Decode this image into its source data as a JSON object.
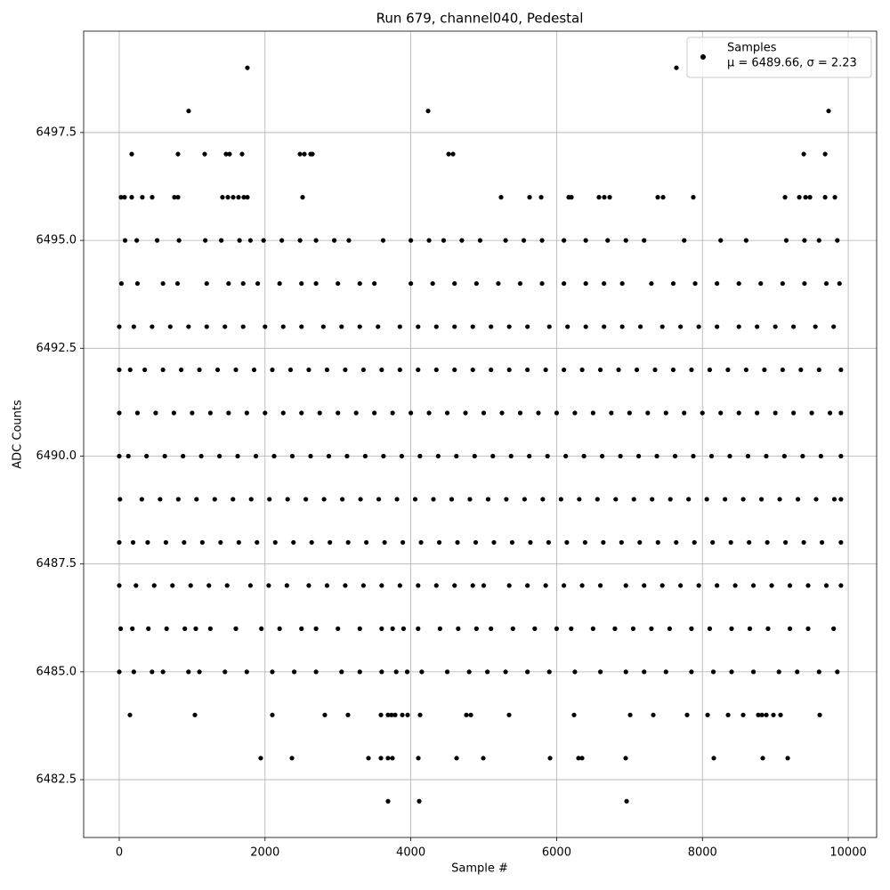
{
  "chart_data": {
    "type": "scatter",
    "title": "Run 679, channel040, Pedestal",
    "x_label": "Sample #",
    "y_label": "ADC Counts",
    "legend_stats": "μ = 6489.66, σ = 2.23",
    "legend_loc": "upper right",
    "grid": true,
    "xlim": [
      -488,
      10390
    ],
    "ylim": [
      6481.16,
      6499.85
    ],
    "xticks": [
      0,
      2000,
      4000,
      6000,
      8000,
      10000
    ],
    "yticks": [
      6482.5,
      {
        "value": 6485,
        "label": "6485.0"
      },
      6487.5,
      {
        "value": 6490,
        "label": "6490.0"
      },
      6492.5,
      {
        "value": 6495,
        "label": "6495.0"
      },
      6497.5
    ],
    "series": [
      {
        "name": "Samples",
        "color": "#000000",
        "x": [
          1758,
          7643,
          952,
          4237,
          9731,
          171,
          806,
          1172,
          1465,
          1514,
          1685,
          2479,
          2540,
          2625,
          2650,
          4518,
          4579,
          9390,
          9683,
          24,
          73,
          171,
          317,
          452,
          757,
          806,
          1416,
          1490,
          1563,
          1636,
          1709,
          1758,
          2515,
          5238,
          5629,
          5788,
          6166,
          6203,
          6581,
          6654,
          6728,
          7387,
          7460,
          7875,
          9133,
          9329,
          9414,
          9475,
          9683,
          9817,
          80,
          240,
          520,
          820,
          1180,
          1400,
          1650,
          1800,
          1980,
          2230,
          2480,
          2700,
          2950,
          3150,
          3620,
          4000,
          4250,
          4450,
          4700,
          4950,
          5300,
          5550,
          5800,
          6100,
          6400,
          6700,
          6950,
          7200,
          7750,
          8250,
          8600,
          9150,
          9400,
          9600,
          9850,
          30,
          250,
          600,
          800,
          1200,
          1500,
          1700,
          1900,
          2200,
          2500,
          2700,
          3000,
          3300,
          3500,
          4000,
          4300,
          4600,
          4900,
          5200,
          5500,
          5800,
          6100,
          6400,
          6650,
          6900,
          7300,
          7600,
          7900,
          8200,
          8500,
          8800,
          9100,
          9400,
          9700,
          9880,
          0,
          200,
          450,
          700,
          950,
          1200,
          1450,
          1700,
          2000,
          2250,
          2500,
          2800,
          3050,
          3300,
          3550,
          3850,
          4100,
          4350,
          4600,
          4850,
          5100,
          5350,
          5600,
          5900,
          6150,
          6400,
          6650,
          6900,
          7150,
          7450,
          7700,
          7950,
          8200,
          8500,
          8750,
          9000,
          9250,
          9550,
          9800,
          0,
          150,
          350,
          600,
          850,
          1100,
          1350,
          1600,
          1850,
          2100,
          2350,
          2600,
          2850,
          3100,
          3350,
          3600,
          3850,
          4100,
          4350,
          4600,
          4850,
          5100,
          5350,
          5600,
          5850,
          6100,
          6350,
          6600,
          6850,
          7100,
          7350,
          7600,
          7850,
          8100,
          8350,
          8600,
          8850,
          9100,
          9350,
          9600,
          9900,
          0,
          250,
          500,
          750,
          1000,
          1250,
          1500,
          1750,
          2000,
          2250,
          2500,
          2750,
          3000,
          3250,
          3500,
          3750,
          4000,
          4250,
          4500,
          4750,
          5000,
          5250,
          5500,
          5750,
          6000,
          6250,
          6500,
          6750,
          7000,
          7250,
          7500,
          7750,
          8000,
          8250,
          8500,
          8750,
          9000,
          9250,
          9500,
          9750,
          9900,
          0,
          125,
          375,
          625,
          875,
          1125,
          1375,
          1625,
          1875,
          2125,
          2375,
          2625,
          2875,
          3125,
          3375,
          3625,
          3875,
          4125,
          4375,
          4625,
          4875,
          5125,
          5375,
          5625,
          5875,
          6125,
          6375,
          6625,
          6875,
          7125,
          7375,
          7625,
          7875,
          8125,
          8375,
          8625,
          8875,
          9125,
          9375,
          9625,
          9900,
          10,
          310,
          560,
          810,
          1060,
          1310,
          1560,
          1810,
          2060,
          2310,
          2560,
          2810,
          3060,
          3310,
          3560,
          3810,
          4060,
          4310,
          4560,
          4810,
          5060,
          5310,
          5560,
          5810,
          6060,
          6310,
          6560,
          6810,
          7060,
          7310,
          7560,
          7810,
          8060,
          8310,
          8560,
          8810,
          9060,
          9310,
          9560,
          9810,
          9900,
          0,
          190,
          390,
          640,
          890,
          1140,
          1390,
          1640,
          1890,
          2140,
          2390,
          2640,
          2890,
          3140,
          3390,
          3640,
          3890,
          4140,
          4390,
          4640,
          4890,
          5140,
          5390,
          5640,
          5890,
          6140,
          6390,
          6640,
          6890,
          7140,
          7390,
          7640,
          7890,
          8140,
          8390,
          8640,
          8890,
          9140,
          9390,
          9640,
          9900,
          0,
          230,
          480,
          730,
          980,
          1230,
          1480,
          1800,
          2050,
          2300,
          2600,
          2850,
          3100,
          3350,
          3600,
          3850,
          4100,
          4350,
          4600,
          4850,
          5000,
          5350,
          5600,
          5850,
          6100,
          6350,
          6600,
          6950,
          7200,
          7450,
          7700,
          7950,
          8200,
          8450,
          8700,
          8950,
          9200,
          9450,
          9700,
          9900,
          20,
          180,
          400,
          650,
          900,
          1050,
          1250,
          1600,
          1950,
          2200,
          2500,
          2700,
          3000,
          3300,
          3600,
          3750,
          3900,
          4100,
          4400,
          4650,
          4900,
          5100,
          5400,
          5700,
          6000,
          6200,
          6500,
          6800,
          7050,
          7300,
          7550,
          7850,
          8100,
          8400,
          8650,
          8900,
          9200,
          9450,
          9800,
          0,
          200,
          450,
          600,
          950,
          1100,
          1450,
          1750,
          2100,
          2400,
          2700,
          3050,
          3300,
          3600,
          3800,
          3950,
          4150,
          4500,
          4800,
          5050,
          5300,
          5600,
          5900,
          6250,
          6600,
          6950,
          7200,
          7500,
          7850,
          8150,
          8400,
          8700,
          9050,
          9300,
          9600,
          9850,
          147,
          1038,
          2100,
          2820,
          3138,
          3590,
          3687,
          3736,
          3785,
          3883,
          3956,
          4127,
          4762,
          4823,
          5348,
          6239,
          7009,
          7326,
          7790,
          8071,
          8352,
          8559,
          8767,
          8816,
          8877,
          8974,
          9072,
          9609,
          1941,
          2369,
          3419,
          3590,
          3687,
          3748,
          4103,
          4628,
          4994,
          5910,
          6300,
          6349,
          6947,
          8156,
          8828,
          9170,
          3687,
          4115,
          6960
        ],
        "values": [
          6499,
          6499,
          6498,
          6498,
          6498,
          6497,
          6497,
          6497,
          6497,
          6497,
          6497,
          6497,
          6497,
          6497,
          6497,
          6497,
          6497,
          6497,
          6497,
          6496,
          6496,
          6496,
          6496,
          6496,
          6496,
          6496,
          6496,
          6496,
          6496,
          6496,
          6496,
          6496,
          6496,
          6496,
          6496,
          6496,
          6496,
          6496,
          6496,
          6496,
          6496,
          6496,
          6496,
          6496,
          6496,
          6496,
          6496,
          6496,
          6496,
          6496,
          6495,
          6495,
          6495,
          6495,
          6495,
          6495,
          6495,
          6495,
          6495,
          6495,
          6495,
          6495,
          6495,
          6495,
          6495,
          6495,
          6495,
          6495,
          6495,
          6495,
          6495,
          6495,
          6495,
          6495,
          6495,
          6495,
          6495,
          6495,
          6495,
          6495,
          6495,
          6495,
          6495,
          6495,
          6495,
          6494,
          6494,
          6494,
          6494,
          6494,
          6494,
          6494,
          6494,
          6494,
          6494,
          6494,
          6494,
          6494,
          6494,
          6494,
          6494,
          6494,
          6494,
          6494,
          6494,
          6494,
          6494,
          6494,
          6494,
          6494,
          6494,
          6494,
          6494,
          6494,
          6494,
          6494,
          6494,
          6494,
          6494,
          6494,
          6493,
          6493,
          6493,
          6493,
          6493,
          6493,
          6493,
          6493,
          6493,
          6493,
          6493,
          6493,
          6493,
          6493,
          6493,
          6493,
          6493,
          6493,
          6493,
          6493,
          6493,
          6493,
          6493,
          6493,
          6493,
          6493,
          6493,
          6493,
          6493,
          6493,
          6493,
          6493,
          6493,
          6493,
          6493,
          6493,
          6493,
          6493,
          6493,
          6492,
          6492,
          6492,
          6492,
          6492,
          6492,
          6492,
          6492,
          6492,
          6492,
          6492,
          6492,
          6492,
          6492,
          6492,
          6492,
          6492,
          6492,
          6492,
          6492,
          6492,
          6492,
          6492,
          6492,
          6492,
          6492,
          6492,
          6492,
          6492,
          6492,
          6492,
          6492,
          6492,
          6492,
          6492,
          6492,
          6492,
          6492,
          6492,
          6492,
          6492,
          6491,
          6491,
          6491,
          6491,
          6491,
          6491,
          6491,
          6491,
          6491,
          6491,
          6491,
          6491,
          6491,
          6491,
          6491,
          6491,
          6491,
          6491,
          6491,
          6491,
          6491,
          6491,
          6491,
          6491,
          6491,
          6491,
          6491,
          6491,
          6491,
          6491,
          6491,
          6491,
          6491,
          6491,
          6491,
          6491,
          6491,
          6491,
          6491,
          6491,
          6491,
          6490,
          6490,
          6490,
          6490,
          6490,
          6490,
          6490,
          6490,
          6490,
          6490,
          6490,
          6490,
          6490,
          6490,
          6490,
          6490,
          6490,
          6490,
          6490,
          6490,
          6490,
          6490,
          6490,
          6490,
          6490,
          6490,
          6490,
          6490,
          6490,
          6490,
          6490,
          6490,
          6490,
          6490,
          6490,
          6490,
          6490,
          6490,
          6490,
          6490,
          6490,
          6489,
          6489,
          6489,
          6489,
          6489,
          6489,
          6489,
          6489,
          6489,
          6489,
          6489,
          6489,
          6489,
          6489,
          6489,
          6489,
          6489,
          6489,
          6489,
          6489,
          6489,
          6489,
          6489,
          6489,
          6489,
          6489,
          6489,
          6489,
          6489,
          6489,
          6489,
          6489,
          6489,
          6489,
          6489,
          6489,
          6489,
          6489,
          6489,
          6489,
          6489,
          6488,
          6488,
          6488,
          6488,
          6488,
          6488,
          6488,
          6488,
          6488,
          6488,
          6488,
          6488,
          6488,
          6488,
          6488,
          6488,
          6488,
          6488,
          6488,
          6488,
          6488,
          6488,
          6488,
          6488,
          6488,
          6488,
          6488,
          6488,
          6488,
          6488,
          6488,
          6488,
          6488,
          6488,
          6488,
          6488,
          6488,
          6488,
          6488,
          6488,
          6488,
          6487,
          6487,
          6487,
          6487,
          6487,
          6487,
          6487,
          6487,
          6487,
          6487,
          6487,
          6487,
          6487,
          6487,
          6487,
          6487,
          6487,
          6487,
          6487,
          6487,
          6487,
          6487,
          6487,
          6487,
          6487,
          6487,
          6487,
          6487,
          6487,
          6487,
          6487,
          6487,
          6487,
          6487,
          6487,
          6487,
          6487,
          6487,
          6487,
          6487,
          6486,
          6486,
          6486,
          6486,
          6486,
          6486,
          6486,
          6486,
          6486,
          6486,
          6486,
          6486,
          6486,
          6486,
          6486,
          6486,
          6486,
          6486,
          6486,
          6486,
          6486,
          6486,
          6486,
          6486,
          6486,
          6486,
          6486,
          6486,
          6486,
          6486,
          6486,
          6486,
          6486,
          6486,
          6486,
          6486,
          6486,
          6486,
          6486,
          6485,
          6485,
          6485,
          6485,
          6485,
          6485,
          6485,
          6485,
          6485,
          6485,
          6485,
          6485,
          6485,
          6485,
          6485,
          6485,
          6485,
          6485,
          6485,
          6485,
          6485,
          6485,
          6485,
          6485,
          6485,
          6485,
          6485,
          6485,
          6485,
          6485,
          6485,
          6485,
          6485,
          6485,
          6485,
          6485,
          6484,
          6484,
          6484,
          6484,
          6484,
          6484,
          6484,
          6484,
          6484,
          6484,
          6484,
          6484,
          6484,
          6484,
          6484,
          6484,
          6484,
          6484,
          6484,
          6484,
          6484,
          6484,
          6484,
          6484,
          6484,
          6484,
          6484,
          6484,
          6483,
          6483,
          6483,
          6483,
          6483,
          6483,
          6483,
          6483,
          6483,
          6483,
          6483,
          6483,
          6483,
          6483,
          6483,
          6483,
          6482,
          6482,
          6482
        ]
      }
    ]
  }
}
